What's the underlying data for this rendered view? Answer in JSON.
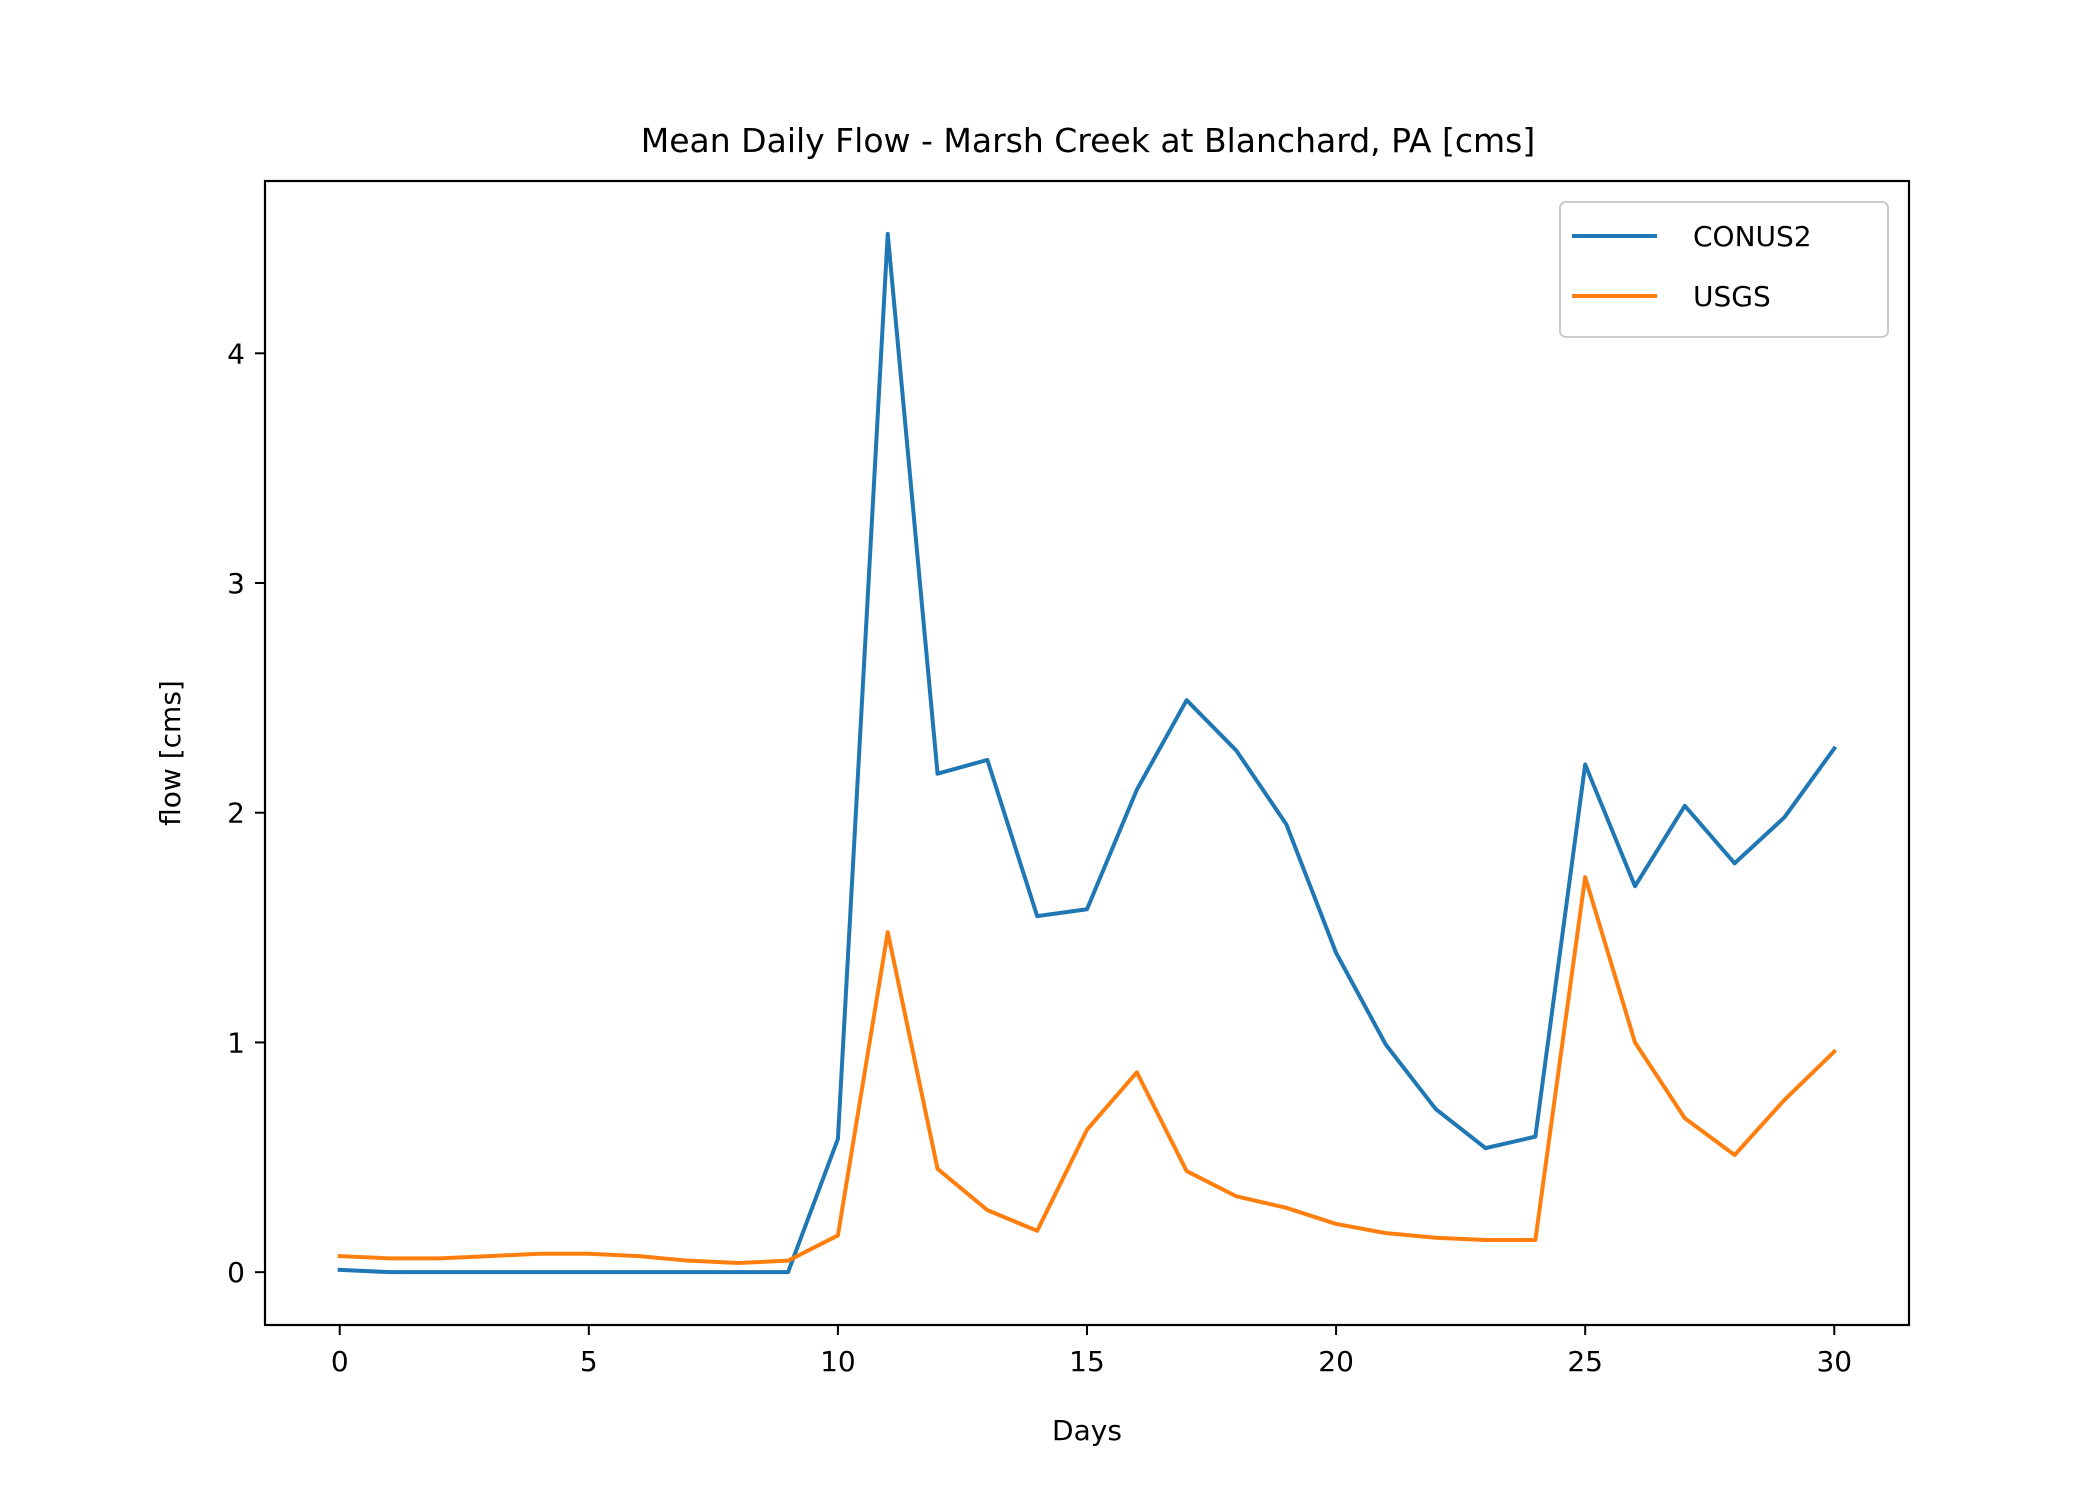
{
  "chart_data": {
    "type": "line",
    "title": "Mean Daily Flow - Marsh Creek at Blanchard, PA [cms]",
    "xlabel": "Days",
    "ylabel": "flow [cms]",
    "xlim": [
      -1.5,
      31.5
    ],
    "ylim": [
      -0.23,
      4.75
    ],
    "xticks": [
      0,
      5,
      10,
      15,
      20,
      25,
      30
    ],
    "yticks": [
      0,
      1,
      2,
      3,
      4
    ],
    "grid": false,
    "legend_position": "top-right",
    "x": [
      0,
      1,
      2,
      3,
      4,
      5,
      6,
      7,
      8,
      9,
      10,
      11,
      12,
      13,
      14,
      15,
      16,
      17,
      18,
      19,
      20,
      21,
      22,
      23,
      24,
      25,
      26,
      27,
      28,
      29,
      30
    ],
    "series": [
      {
        "name": "CONUS2",
        "color": "#1f77b4",
        "values": [
          0.01,
          0.0,
          0.0,
          0.0,
          0.0,
          0.0,
          0.0,
          0.0,
          0.0,
          0.0,
          0.58,
          4.52,
          2.17,
          2.23,
          1.55,
          1.58,
          2.1,
          2.49,
          2.27,
          1.95,
          1.39,
          0.99,
          0.71,
          0.54,
          0.59,
          2.21,
          1.68,
          2.03,
          1.78,
          1.98,
          2.28
        ]
      },
      {
        "name": "USGS",
        "color": "#ff7f0e",
        "values": [
          0.07,
          0.06,
          0.06,
          0.07,
          0.08,
          0.08,
          0.07,
          0.05,
          0.04,
          0.05,
          0.16,
          1.48,
          0.45,
          0.27,
          0.18,
          0.62,
          0.87,
          0.44,
          0.33,
          0.28,
          0.21,
          0.17,
          0.15,
          0.14,
          0.14,
          1.72,
          1.0,
          0.67,
          0.51,
          0.75,
          0.96
        ]
      }
    ]
  }
}
